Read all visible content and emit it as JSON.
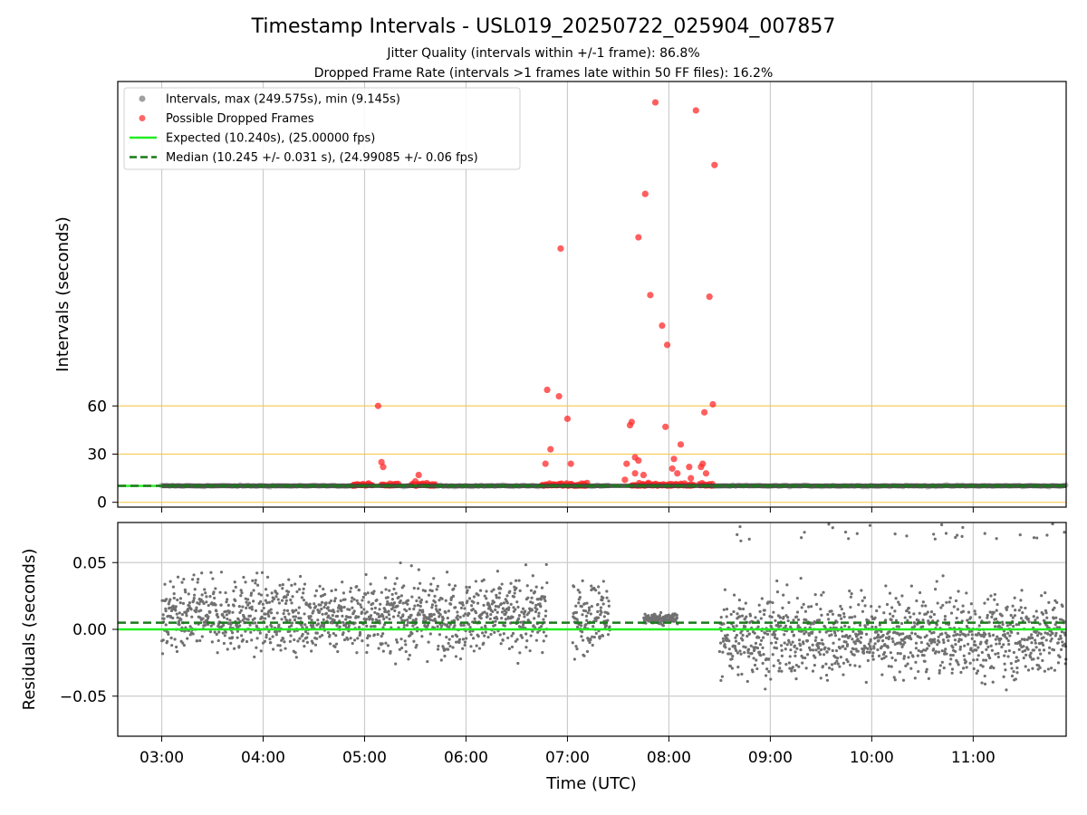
{
  "chart_data": [
    {
      "type": "scatter",
      "title": "Timestamp Intervals - USL019_20250722_025904_007857",
      "subtitle_lines": [
        "Jitter Quality (intervals within +/-1 frame): 86.8%",
        "Dropped Frame Rate (intervals >1 frames late within 50 FF files): 16.2%"
      ],
      "xlabel": "",
      "ylabel": "Intervals (seconds)",
      "xlim": [
        "02:34",
        "11:55"
      ],
      "ylim": [
        -3,
        262
      ],
      "yticks": [
        0,
        30,
        60
      ],
      "reference_lines": [
        {
          "y": 0,
          "color": "#f5c542"
        },
        {
          "y": 30,
          "color": "#f5c542"
        },
        {
          "y": 60,
          "color": "#f5c542"
        }
      ],
      "legend": {
        "placement": "top-left",
        "entries": [
          {
            "label": "Intervals, max (249.575s), min (9.145s)",
            "marker": "dot",
            "color": "#808080"
          },
          {
            "label": "Possible Dropped Frames",
            "marker": "dot",
            "color": "#ff3333"
          },
          {
            "label": "Expected (10.240s), (25.00000 fps)",
            "marker": "line",
            "color": "#22ee22"
          },
          {
            "label": "Median (10.245 +/- 0.031 s), (24.99085 +/- 0.06 fps)",
            "marker": "dash",
            "color": "#1a7a1a"
          }
        ]
      },
      "expected_interval": 10.24,
      "median_interval": 10.245,
      "series": [
        {
          "name": "Intervals, max (249.575s), min (9.145s)",
          "color": "#808080",
          "segments": [
            [
              "03:00",
              "04:55"
            ],
            [
              "05:15",
              "05:28"
            ],
            [
              "05:37",
              "06:47"
            ],
            [
              "07:05",
              "07:25"
            ],
            [
              "08:25",
              "11:55"
            ]
          ],
          "y": 10.24
        },
        {
          "name": "Possible Dropped Frames",
          "color": "#ff2a2a",
          "points": [
            {
              "x": "05:08",
              "y": 60
            },
            {
              "x": "05:10",
              "y": 25
            },
            {
              "x": "05:11",
              "y": 22
            },
            {
              "x": "05:32",
              "y": 17
            },
            {
              "x": "05:30",
              "y": 13
            },
            {
              "x": "06:48",
              "y": 70
            },
            {
              "x": "06:55",
              "y": 66
            },
            {
              "x": "06:47",
              "y": 24
            },
            {
              "x": "06:50",
              "y": 33
            },
            {
              "x": "06:56",
              "y": 158
            },
            {
              "x": "07:00",
              "y": 52
            },
            {
              "x": "07:02",
              "y": 24
            },
            {
              "x": "07:37",
              "y": 48
            },
            {
              "x": "07:38",
              "y": 50
            },
            {
              "x": "07:40",
              "y": 28
            },
            {
              "x": "07:42",
              "y": 26
            },
            {
              "x": "07:42",
              "y": 165
            },
            {
              "x": "07:46",
              "y": 192
            },
            {
              "x": "07:49",
              "y": 129
            },
            {
              "x": "07:52",
              "y": 249
            },
            {
              "x": "07:45",
              "y": 17
            },
            {
              "x": "07:35",
              "y": 24
            },
            {
              "x": "07:40",
              "y": 18
            },
            {
              "x": "07:34",
              "y": 14
            },
            {
              "x": "07:56",
              "y": 110
            },
            {
              "x": "07:58",
              "y": 47
            },
            {
              "x": "07:59",
              "y": 98
            },
            {
              "x": "08:03",
              "y": 27
            },
            {
              "x": "08:02",
              "y": 21
            },
            {
              "x": "08:05",
              "y": 18
            },
            {
              "x": "08:07",
              "y": 36
            },
            {
              "x": "08:12",
              "y": 22
            },
            {
              "x": "08:13",
              "y": 15
            },
            {
              "x": "08:16",
              "y": 244
            },
            {
              "x": "08:20",
              "y": 24
            },
            {
              "x": "08:19",
              "y": 22
            },
            {
              "x": "08:21",
              "y": 56
            },
            {
              "x": "08:22",
              "y": 18
            },
            {
              "x": "08:24",
              "y": 128
            },
            {
              "x": "08:26",
              "y": 61
            },
            {
              "x": "08:27",
              "y": 210
            }
          ]
        }
      ]
    },
    {
      "type": "scatter",
      "xlabel": "Time (UTC)",
      "ylabel": "Residuals (seconds)",
      "xlim": [
        "02:34",
        "11:55"
      ],
      "ylim": [
        -0.08,
        0.08
      ],
      "yticks": [
        0.05,
        0.0,
        -0.05
      ],
      "ytick_labels": [
        "0.05",
        "0.00",
        "−0.05"
      ],
      "xticks": [
        "03:00",
        "04:00",
        "05:00",
        "06:00",
        "07:00",
        "08:00",
        "09:00",
        "10:00",
        "11:00"
      ],
      "grid": true,
      "expected_residual": 0.0,
      "median_residual": 0.005,
      "series": [
        {
          "name": "",
          "color": "#707070",
          "bands": [
            {
              "from": "03:00",
              "to": "05:00",
              "center": 0.01,
              "spread": 0.026
            },
            {
              "from": "05:00",
              "to": "06:48",
              "center": 0.01,
              "spread": 0.027
            },
            {
              "from": "07:03",
              "to": "07:25",
              "center": 0.01,
              "spread": 0.026
            },
            {
              "from": "07:45",
              "to": "08:05",
              "center": 0.008,
              "spread": 0.004
            },
            {
              "from": "08:30",
              "to": "11:55",
              "center": -0.005,
              "spread": 0.03
            }
          ]
        }
      ]
    }
  ]
}
